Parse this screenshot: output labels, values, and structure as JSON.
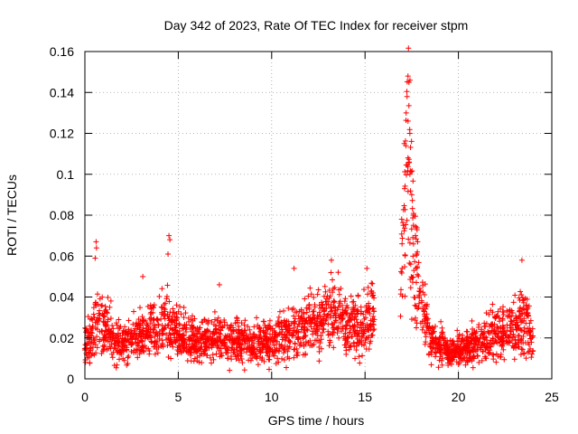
{
  "chart_data": {
    "type": "scatter",
    "title": "Day 342 of 2023, Rate Of TEC Index for receiver stpm",
    "xlabel": "GPS time / hours",
    "ylabel": "ROTI / TECUs",
    "xlim": [
      0,
      25
    ],
    "ylim": [
      0,
      0.16
    ],
    "x_ticks": [
      0,
      5,
      10,
      15,
      20,
      25
    ],
    "x_tick_labels": [
      "0",
      "5",
      "10",
      "15",
      "20",
      "25"
    ],
    "y_ticks": [
      0,
      0.02,
      0.04,
      0.06,
      0.08,
      0.1,
      0.12,
      0.14,
      0.16
    ],
    "y_tick_labels": [
      "0",
      "0.02",
      "0.04",
      "0.06",
      "0.08",
      "0.1",
      "0.12",
      "0.14",
      "0.16"
    ],
    "grid": true,
    "marker": "+",
    "color": "#ff0000",
    "series": [
      {
        "name": "ROTI",
        "profile_hours": [
          0,
          0.5,
          0.7,
          1.0,
          2.0,
          3.0,
          4.0,
          4.5,
          5.0,
          6.0,
          7.0,
          8.0,
          9.0,
          10.0,
          11.0,
          12.0,
          13.0,
          14.0,
          15.0,
          15.5,
          16.9,
          17.1,
          17.3,
          17.5,
          17.7,
          18.0,
          18.5,
          19.0,
          19.5,
          20.0,
          21.0,
          22.0,
          23.0,
          23.5,
          24.0
        ],
        "profile_roti": [
          0.018,
          0.022,
          0.028,
          0.025,
          0.017,
          0.022,
          0.025,
          0.028,
          0.022,
          0.018,
          0.02,
          0.019,
          0.017,
          0.018,
          0.022,
          0.027,
          0.033,
          0.027,
          0.028,
          0.03,
          0.05,
          0.08,
          0.1,
          0.08,
          0.055,
          0.035,
          0.02,
          0.017,
          0.012,
          0.014,
          0.017,
          0.022,
          0.025,
          0.03,
          0.018
        ],
        "spikes": [
          {
            "x": 0.6,
            "y": 0.067
          },
          {
            "x": 0.62,
            "y": 0.064
          },
          {
            "x": 0.55,
            "y": 0.059
          },
          {
            "x": 4.5,
            "y": 0.07
          },
          {
            "x": 4.55,
            "y": 0.068
          },
          {
            "x": 4.45,
            "y": 0.061
          },
          {
            "x": 17.3,
            "y": 0.148
          },
          {
            "x": 17.35,
            "y": 0.145
          },
          {
            "x": 17.25,
            "y": 0.138
          },
          {
            "x": 17.2,
            "y": 0.13
          },
          {
            "x": 17.3,
            "y": 0.126
          },
          {
            "x": 17.4,
            "y": 0.12
          },
          {
            "x": 17.1,
            "y": 0.115
          },
          {
            "x": 17.3,
            "y": 0.108
          },
          {
            "x": 17.4,
            "y": 0.1
          },
          {
            "x": 17.5,
            "y": 0.09
          },
          {
            "x": 17.6,
            "y": 0.08
          },
          {
            "x": 17.7,
            "y": 0.07
          },
          {
            "x": 17.8,
            "y": 0.062
          },
          {
            "x": 13.2,
            "y": 0.058
          },
          {
            "x": 23.4,
            "y": 0.058
          },
          {
            "x": 11.2,
            "y": 0.054
          },
          {
            "x": 15.1,
            "y": 0.054
          },
          {
            "x": 3.1,
            "y": 0.05
          },
          {
            "x": 7.2,
            "y": 0.046
          }
        ]
      }
    ]
  }
}
